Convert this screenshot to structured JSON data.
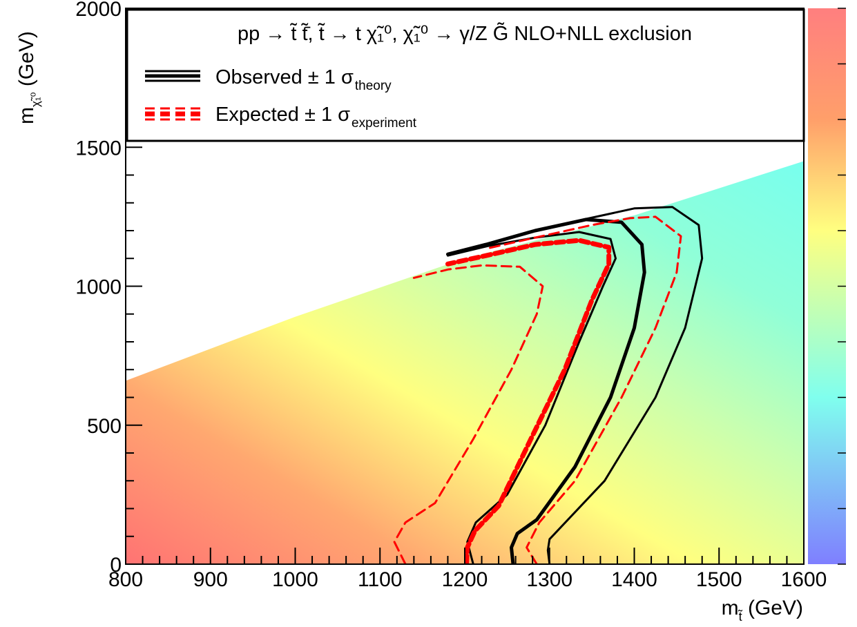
{
  "chart_data": {
    "type": "heatmap",
    "title": "",
    "xlabel": "m_t̃ (GeV)",
    "ylabel": "m_χ̃₁⁰ (GeV)",
    "xlabel_parts": {
      "main": "m",
      "sub": "t̃",
      "unit": " (GeV)"
    },
    "ylabel_parts": {
      "main": "m",
      "sub": "χ̃₁⁰",
      "unit": " (GeV)"
    },
    "xlim": [
      800,
      1600
    ],
    "ylim": [
      0,
      2000
    ],
    "x_ticks": [
      800,
      900,
      1000,
      1100,
      1200,
      1300,
      1400,
      1500,
      1600
    ],
    "y_ticks": [
      0,
      500,
      1000,
      1500,
      2000
    ],
    "x_tick_labels": [
      "800",
      "900",
      "1000",
      "1100",
      "1200",
      "1300",
      "1400",
      "1500",
      "1600"
    ],
    "y_tick_labels": [
      "0",
      "500",
      "1000",
      "1500",
      "2000"
    ],
    "grid": false,
    "colorbar": {
      "position": "right",
      "colors": [
        "#ff7f7f",
        "#ff9f6a",
        "#ffff80",
        "#80ffdf",
        "#7f7fff"
      ]
    },
    "heatmap_boundary": [
      [
        800,
        660
      ],
      [
        1000,
        890
      ],
      [
        1200,
        1100
      ],
      [
        1400,
        1255
      ],
      [
        1600,
        1450
      ]
    ],
    "heatmap_color_stops": [
      {
        "x": 800,
        "y": 0,
        "color": "#ff7777"
      },
      {
        "x": 1100,
        "y": 350,
        "color": "#ffff7f"
      },
      {
        "x": 1350,
        "y": 650,
        "color": "#b0ffc8"
      },
      {
        "x": 1500,
        "y": 1200,
        "color": "#80ffe8"
      }
    ],
    "legend": {
      "placement": "top",
      "header": "pp → t̃ t̃̄, t̃ → t χ̃₁⁰, χ̃₁⁰ → γ/Z G̃  NLO+NLL exclusion",
      "entries": [
        {
          "label": "Observed ± 1 σ",
          "sub": "theory",
          "color": "#000000",
          "style": "solid"
        },
        {
          "label": "Expected ± 1 σ",
          "sub": "experiment",
          "color": "#ff0000",
          "style": "dashed"
        }
      ]
    },
    "series": [
      {
        "role": "observed",
        "color": "#000000",
        "dash": "none",
        "width": 5,
        "x": [
          1257,
          1255,
          1262,
          1285,
          1330,
          1372,
          1400,
          1412,
          1409,
          1385,
          1343,
          1283,
          1225,
          1180
        ],
        "y": [
          0,
          60,
          110,
          160,
          350,
          600,
          850,
          1050,
          1150,
          1230,
          1240,
          1200,
          1150,
          1115
        ]
      },
      {
        "role": "observed-plus",
        "color": "#000000",
        "dash": "none",
        "width": 3,
        "x": [
          1210,
          1203,
          1213,
          1250,
          1295,
          1335,
          1363,
          1378,
          1372,
          1335,
          1283,
          1228,
          1180
        ],
        "y": [
          0,
          80,
          150,
          250,
          500,
          800,
          1000,
          1100,
          1170,
          1195,
          1175,
          1145,
          1110
        ]
      },
      {
        "role": "observed-minus",
        "color": "#000000",
        "dash": "none",
        "width": 3,
        "x": [
          1300,
          1298,
          1300,
          1365,
          1425,
          1460,
          1480,
          1476,
          1445,
          1400,
          1340,
          1283,
          1225
        ],
        "y": [
          0,
          50,
          90,
          300,
          600,
          850,
          1100,
          1220,
          1285,
          1280,
          1240,
          1200,
          1150
        ]
      },
      {
        "role": "expected",
        "color": "#ff0000",
        "dash": "12 6",
        "width": 7,
        "x": [
          1202,
          1203,
          1212,
          1240,
          1278,
          1318,
          1350,
          1370,
          1370,
          1335,
          1283,
          1225,
          1180
        ],
        "y": [
          0,
          60,
          120,
          210,
          450,
          700,
          950,
          1080,
          1140,
          1165,
          1150,
          1110,
          1080
        ]
      },
      {
        "role": "expected-minus",
        "color": "#ff0000",
        "dash": "14 8",
        "width": 3,
        "x": [
          1130,
          1117,
          1130,
          1165,
          1210,
          1255,
          1285,
          1292,
          1265,
          1220,
          1180,
          1140
        ],
        "y": [
          0,
          80,
          150,
          220,
          450,
          700,
          900,
          1000,
          1070,
          1075,
          1060,
          1030
        ]
      },
      {
        "role": "expected-plus",
        "color": "#ff0000",
        "dash": "14 8",
        "width": 3,
        "x": [
          1285,
          1273,
          1288,
          1330,
          1385,
          1425,
          1450,
          1455,
          1425,
          1395,
          1350,
          1283,
          1225
        ],
        "y": [
          0,
          60,
          150,
          300,
          600,
          850,
          1050,
          1180,
          1250,
          1245,
          1220,
          1175,
          1135
        ]
      }
    ]
  }
}
